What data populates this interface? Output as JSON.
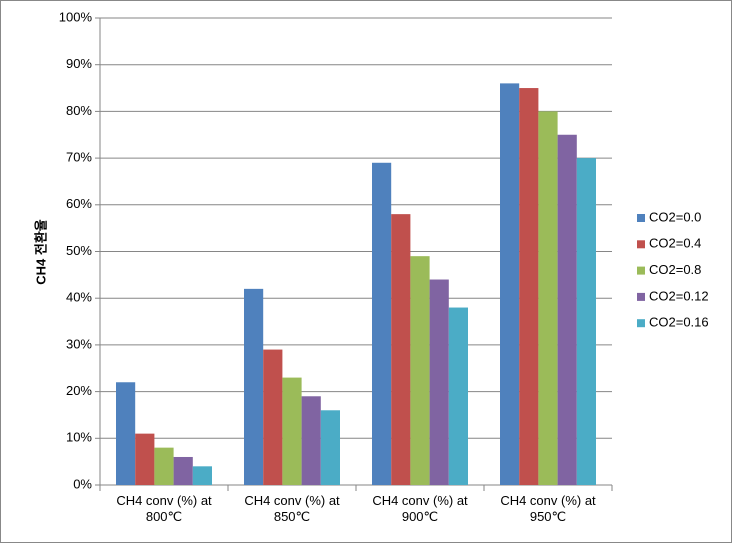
{
  "chart_data": {
    "type": "bar",
    "y_label": "CH4 전환율",
    "categories": [
      "CH4 conv (%) at 800℃",
      "CH4 conv (%) at 850℃",
      "CH4 conv (%) at 900℃",
      "CH4 conv (%) at 950℃"
    ],
    "series": [
      {
        "name": "CO2=0.0",
        "color": "#4f81bd",
        "values": [
          22,
          42,
          69,
          86
        ]
      },
      {
        "name": "CO2=0.4",
        "color": "#c0504d",
        "values": [
          11,
          29,
          58,
          85
        ]
      },
      {
        "name": "CO2=0.8",
        "color": "#9bbb59",
        "values": [
          8,
          23,
          49,
          80
        ]
      },
      {
        "name": "CO2=0.12",
        "color": "#8064a2",
        "values": [
          6,
          19,
          44,
          75
        ]
      },
      {
        "name": "CO2=0.16",
        "color": "#4bacc6",
        "values": [
          4,
          16,
          38,
          70
        ]
      }
    ],
    "ylim": [
      0,
      100
    ],
    "yticks": [
      {
        "value": 0,
        "label": "0%"
      },
      {
        "value": 10,
        "label": "10%"
      },
      {
        "value": 20,
        "label": "20%"
      },
      {
        "value": 30,
        "label": "30%"
      },
      {
        "value": 40,
        "label": "40%"
      },
      {
        "value": 50,
        "label": "50%"
      },
      {
        "value": 60,
        "label": "60%"
      },
      {
        "value": 70,
        "label": "70%"
      },
      {
        "value": 80,
        "label": "80%"
      },
      {
        "value": 90,
        "label": "90%"
      },
      {
        "value": 100,
        "label": "100%"
      }
    ],
    "grid": true,
    "legend": "right"
  }
}
